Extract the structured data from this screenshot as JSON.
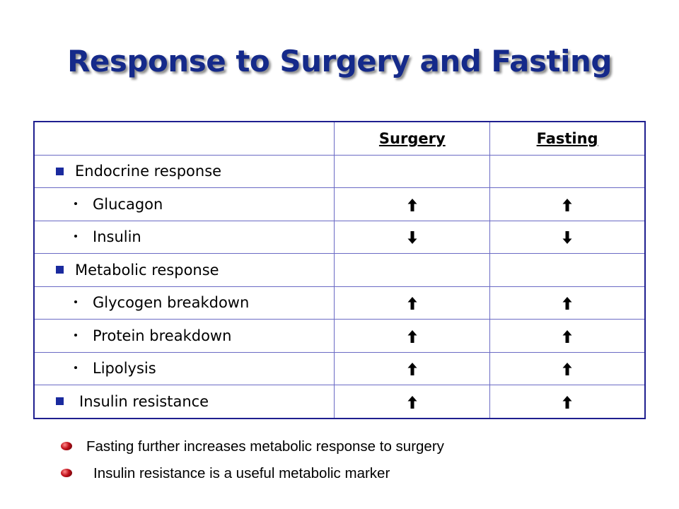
{
  "title": "Response to Surgery and Fasting",
  "table": {
    "headers": [
      "",
      "Surgery",
      "Fasting"
    ],
    "rows": [
      {
        "label": "Endocrine response",
        "level": 1,
        "surgery": "",
        "fasting": ""
      },
      {
        "label": "Glucagon",
        "level": 2,
        "surgery": "up-arrow-icon",
        "fasting": "up-arrow-icon"
      },
      {
        "label": "Insulin",
        "level": 2,
        "surgery": "down-arrow-icon",
        "fasting": "down-arrow-icon"
      },
      {
        "label": "Metabolic response",
        "level": 1,
        "surgery": "",
        "fasting": ""
      },
      {
        "label": "Glycogen breakdown",
        "level": 2,
        "surgery": "up-arrow-icon",
        "fasting": "up-arrow-icon"
      },
      {
        "label": "Protein breakdown",
        "level": 2,
        "surgery": "up-arrow-icon",
        "fasting": "up-arrow-icon"
      },
      {
        "label": "Lipolysis",
        "level": 2,
        "surgery": "up-arrow-icon",
        "fasting": "up-arrow-icon"
      },
      {
        "label": "Insulin resistance",
        "level": 1,
        "surgery": "up-arrow-icon",
        "fasting": "up-arrow-icon"
      }
    ]
  },
  "notes": [
    "Fasting further increases metabolic response to surgery",
    "Insulin resistance is a useful metabolic marker"
  ],
  "colors": {
    "title": "#152a8a",
    "table_border": "#1f1f8f",
    "square_bullet": "#1a2a9e",
    "note_bullet": "#c0101a"
  }
}
